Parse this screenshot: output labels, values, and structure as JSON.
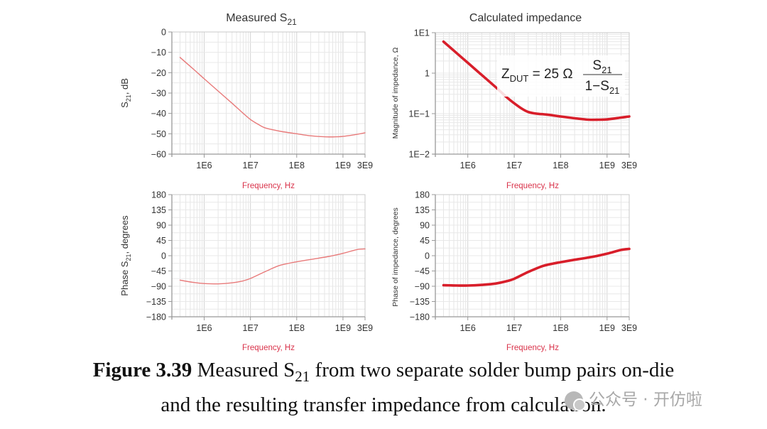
{
  "figure": {
    "caption_label": "Figure 3.39",
    "caption_line1_pre": " Measured S",
    "caption_line1_sub": "21",
    "caption_line1_post": " from two separate solder bump pairs on-die",
    "caption_line2": "and the resulting transfer impedance from calculation.",
    "watermark": "公众号 · 开仿啦"
  },
  "colors": {
    "thin_trace": "#e87a7a",
    "thick_trace": "#d81e2a",
    "xlabel": "#d9324a",
    "grid": "#e2e2e2",
    "axis": "#999999"
  },
  "chart_data": [
    {
      "id": "s21-mag",
      "type": "line",
      "title": "Measured S",
      "title_sub": "21",
      "xlabel": "Frequency, Hz",
      "ylabel": "S",
      "ylabel_sub": "21",
      "ylabel_post": ", dB",
      "xscale": "log",
      "yscale": "linear",
      "xlim": [
        200000,
        3000000000
      ],
      "ylim": [
        -60,
        0
      ],
      "xticks": [
        {
          "value": 1000000,
          "label": "1E6"
        },
        {
          "value": 10000000,
          "label": "1E7"
        },
        {
          "value": 100000000,
          "label": "1E8"
        },
        {
          "value": 1000000000,
          "label": "1E9"
        },
        {
          "value": 3000000000,
          "label": "3E9"
        }
      ],
      "yticks": [
        {
          "value": 0,
          "label": "0"
        },
        {
          "value": -10,
          "label": "−10"
        },
        {
          "value": -20,
          "label": "−20"
        },
        {
          "value": -30,
          "label": "−30"
        },
        {
          "value": -40,
          "label": "−40"
        },
        {
          "value": -50,
          "label": "−50"
        },
        {
          "value": -60,
          "label": "−60"
        }
      ],
      "grid": true,
      "series": [
        {
          "name": "S21 magnitude",
          "style": "thin",
          "x": [
            300000,
            600000,
            1000000,
            2000000,
            4000000,
            7000000,
            10000000,
            15000000,
            20000000,
            30000000,
            50000000,
            100000000,
            200000000,
            400000000,
            700000000,
            1000000000,
            2000000000,
            3000000000
          ],
          "y": [
            -12.5,
            -18.5,
            -23,
            -29,
            -35,
            -40,
            -43,
            -45.5,
            -47,
            -48,
            -49,
            -50,
            -51,
            -51.5,
            -51.5,
            -51.3,
            -50.3,
            -49.5
          ]
        }
      ]
    },
    {
      "id": "impedance-mag",
      "type": "line",
      "title": "Calculated impedance",
      "xlabel": "Frequency, Hz",
      "ylabel": "Magnitude of impedance, Ω",
      "xscale": "log",
      "yscale": "log",
      "xlim": [
        200000,
        3000000000
      ],
      "ylim": [
        0.01,
        10
      ],
      "xticks": [
        {
          "value": 1000000,
          "label": "1E6"
        },
        {
          "value": 10000000,
          "label": "1E7"
        },
        {
          "value": 100000000,
          "label": "1E8"
        },
        {
          "value": 1000000000,
          "label": "1E9"
        },
        {
          "value": 3000000000,
          "label": "3E9"
        }
      ],
      "yticks": [
        {
          "value": 10,
          "label": "1E1"
        },
        {
          "value": 1,
          "label": "1"
        },
        {
          "value": 0.1,
          "label": "1E−1"
        },
        {
          "value": 0.01,
          "label": "1E−2"
        }
      ],
      "grid": true,
      "annotation": {
        "lhs": "Z",
        "lhs_sub": "DUT",
        "eq": " = 25 Ω",
        "num": "S",
        "num_sub": "21",
        "den": "1−S",
        "den_sub": "21"
      },
      "series": [
        {
          "name": "|Z|",
          "style": "thick",
          "x": [
            300000,
            600000,
            1000000,
            2000000,
            4000000,
            7000000,
            10000000,
            15000000,
            20000000,
            30000000,
            50000000,
            100000000,
            200000000,
            400000000,
            700000000,
            1000000000,
            2000000000,
            3000000000
          ],
          "y": [
            6.0,
            3.0,
            1.8,
            0.9,
            0.45,
            0.25,
            0.18,
            0.13,
            0.11,
            0.1,
            0.095,
            0.085,
            0.077,
            0.071,
            0.071,
            0.072,
            0.08,
            0.085
          ]
        }
      ]
    },
    {
      "id": "s21-phase",
      "type": "line",
      "title": "",
      "xlabel": "Frequency, Hz",
      "ylabel": "Phase S",
      "ylabel_sub": "21",
      "ylabel_post": ", degrees",
      "xscale": "log",
      "yscale": "linear",
      "xlim": [
        200000,
        3000000000
      ],
      "ylim": [
        -180,
        180
      ],
      "xticks": [
        {
          "value": 1000000,
          "label": "1E6"
        },
        {
          "value": 10000000,
          "label": "1E7"
        },
        {
          "value": 100000000,
          "label": "1E8"
        },
        {
          "value": 1000000000,
          "label": "1E9"
        },
        {
          "value": 3000000000,
          "label": "3E9"
        }
      ],
      "yticks": [
        {
          "value": 180,
          "label": "180"
        },
        {
          "value": 135,
          "label": "135"
        },
        {
          "value": 90,
          "label": "90"
        },
        {
          "value": 45,
          "label": "45"
        },
        {
          "value": 0,
          "label": "0"
        },
        {
          "value": -45,
          "label": "−45"
        },
        {
          "value": -90,
          "label": "−90"
        },
        {
          "value": -135,
          "label": "−135"
        },
        {
          "value": -180,
          "label": "−180"
        }
      ],
      "grid": true,
      "series": [
        {
          "name": "S21 phase",
          "style": "thin",
          "x": [
            300000,
            600000,
            1000000,
            2000000,
            4000000,
            7000000,
            10000000,
            20000000,
            40000000,
            70000000,
            100000000,
            200000000,
            500000000,
            1000000000,
            2000000000,
            3000000000
          ],
          "y": [
            -72,
            -79,
            -82,
            -83,
            -80,
            -74,
            -67,
            -48,
            -30,
            -22,
            -18,
            -11,
            -2,
            7,
            18,
            20
          ]
        }
      ]
    },
    {
      "id": "impedance-phase",
      "type": "line",
      "title": "",
      "xlabel": "Frequency, Hz",
      "ylabel": "Phase of impedance, degrees",
      "xscale": "log",
      "yscale": "linear",
      "xlim": [
        200000,
        3000000000
      ],
      "ylim": [
        -180,
        180
      ],
      "xticks": [
        {
          "value": 1000000,
          "label": "1E6"
        },
        {
          "value": 10000000,
          "label": "1E7"
        },
        {
          "value": 100000000,
          "label": "1E8"
        },
        {
          "value": 1000000000,
          "label": "1E9"
        },
        {
          "value": 3000000000,
          "label": "3E9"
        }
      ],
      "yticks": [
        {
          "value": 180,
          "label": "180"
        },
        {
          "value": 135,
          "label": "135"
        },
        {
          "value": 90,
          "label": "90"
        },
        {
          "value": 45,
          "label": "45"
        },
        {
          "value": 0,
          "label": "0"
        },
        {
          "value": -45,
          "label": "−45"
        },
        {
          "value": -90,
          "label": "−90"
        },
        {
          "value": -135,
          "label": "−135"
        },
        {
          "value": -180,
          "label": "−180"
        }
      ],
      "grid": true,
      "series": [
        {
          "name": "Phase of Z",
          "style": "thick",
          "x": [
            300000,
            600000,
            1000000,
            2000000,
            4000000,
            7000000,
            10000000,
            20000000,
            40000000,
            70000000,
            100000000,
            200000000,
            500000000,
            1000000000,
            2000000000,
            3000000000
          ],
          "y": [
            -87,
            -88,
            -88,
            -86,
            -82,
            -75,
            -68,
            -48,
            -31,
            -23,
            -19,
            -12,
            -3,
            6,
            17,
            20
          ]
        }
      ]
    }
  ]
}
